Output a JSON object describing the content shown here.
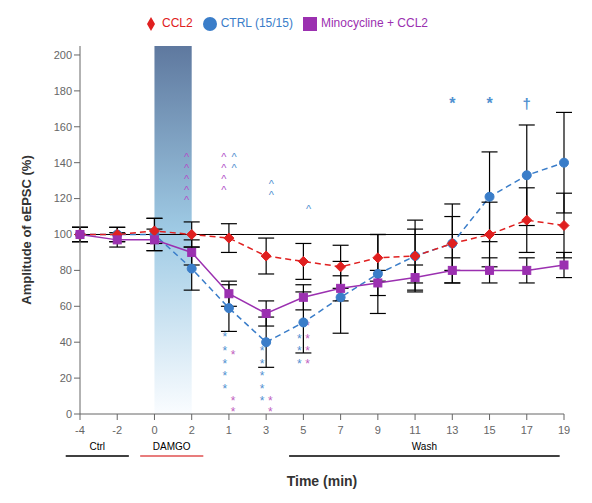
{
  "chart_data": {
    "type": "line",
    "xlabel": "Time (min)",
    "ylabel": "Amplitude of eEPSC (%)",
    "categories": [
      "-4",
      "-2",
      "0",
      "2",
      "1",
      "3",
      "5",
      "7",
      "9",
      "11",
      "13",
      "15",
      "17",
      "19"
    ],
    "ylim": [
      0,
      205
    ],
    "yticks": [
      0,
      20,
      40,
      60,
      80,
      100,
      120,
      140,
      160,
      180,
      200
    ],
    "grid": false,
    "legend": "top",
    "series": [
      {
        "name": "CTRL (15/15)",
        "color": "#3a7dc9",
        "marker": "circle",
        "line_style": "dashed",
        "values": [
          100,
          100,
          100,
          81,
          59,
          40,
          51,
          65,
          78,
          88,
          95,
          121,
          133,
          140
        ],
        "errors": [
          4,
          4,
          9,
          12,
          13,
          14,
          17,
          20,
          22,
          20,
          22,
          25,
          28,
          28
        ]
      },
      {
        "name": "CCL2",
        "color": "#e02020",
        "marker": "diamond",
        "line_style": "dashed",
        "values": [
          100,
          100,
          102,
          100,
          98,
          88,
          85,
          82,
          87,
          88,
          95,
          100,
          108,
          105
        ],
        "errors": [
          4,
          4,
          7,
          7,
          8,
          10,
          10,
          12,
          13,
          15,
          15,
          18,
          18,
          18
        ]
      },
      {
        "name": "Minocycline + CCL2",
        "color": "#9b30b0",
        "marker": "square",
        "line_style": "solid",
        "values": [
          100,
          97,
          97,
          90,
          67,
          56,
          65,
          70,
          73,
          76,
          80,
          80,
          80,
          83
        ],
        "errors": [
          4,
          4,
          6,
          7,
          7,
          7,
          7,
          7,
          7,
          7,
          7,
          7,
          7,
          7
        ]
      }
    ],
    "reference_line": 100,
    "shaded": {
      "from": "0",
      "to": "2"
    },
    "phases": [
      {
        "text": "Ctrl",
        "from": "-4",
        "to": "-2",
        "color": "#000000"
      },
      {
        "text": "DAMGO",
        "from": "0",
        "to": "2",
        "color": "#e05050"
      },
      {
        "text": "Wash",
        "from": "5",
        "to": "19",
        "color": "#000000"
      }
    ],
    "annotations": [
      {
        "text": "^",
        "color": "#b050c8",
        "points": [
          {
            "x": "2",
            "y": 143
          },
          {
            "x": "2",
            "y": 137
          },
          {
            "x": "2",
            "y": 131
          },
          {
            "x": "2",
            "y": 125
          },
          {
            "x": "2",
            "y": 119
          },
          {
            "x": "1",
            "y": 143
          },
          {
            "x": "1",
            "y": 137
          },
          {
            "x": "1",
            "y": 131
          },
          {
            "x": "1",
            "y": 125
          }
        ]
      },
      {
        "text": "^",
        "color": "#5090d0",
        "points": [
          {
            "x": "1",
            "y": 143
          },
          {
            "x": "1",
            "y": 137
          },
          {
            "x": "3",
            "y": 128
          },
          {
            "x": "3",
            "y": 122
          },
          {
            "x": "5",
            "y": 114
          }
        ]
      },
      {
        "text": "*",
        "color": "#5090d0",
        "points": [
          {
            "x": "1",
            "y": 43
          },
          {
            "x": "1",
            "y": 35
          },
          {
            "x": "1",
            "y": 28
          },
          {
            "x": "1",
            "y": 21
          },
          {
            "x": "1",
            "y": 14
          },
          {
            "x": "3",
            "y": 35
          },
          {
            "x": "3",
            "y": 28
          },
          {
            "x": "3",
            "y": 21
          },
          {
            "x": "3",
            "y": 14
          },
          {
            "x": "3",
            "y": 7
          },
          {
            "x": "5",
            "y": 42
          },
          {
            "x": "5",
            "y": 35
          },
          {
            "x": "5",
            "y": 28
          }
        ]
      },
      {
        "text": "*",
        "color": "#c060c0",
        "points": [
          {
            "x": "1",
            "y": 33
          },
          {
            "x": "1",
            "y": 7
          },
          {
            "x": "1",
            "y": 1
          },
          {
            "x": "3",
            "y": 7
          },
          {
            "x": "3",
            "y": 1
          },
          {
            "x": "5",
            "y": 49
          },
          {
            "x": "5",
            "y": 42
          },
          {
            "x": "5",
            "y": 35
          },
          {
            "x": "5",
            "y": 28
          }
        ]
      },
      {
        "text": "*",
        "color": "#5090d0",
        "points": [
          {
            "x": "13",
            "y": 173
          },
          {
            "x": "15",
            "y": 173
          }
        ]
      },
      {
        "text": "†",
        "color": "#5090d0",
        "points": [
          {
            "x": "17",
            "y": 173
          }
        ]
      }
    ]
  }
}
